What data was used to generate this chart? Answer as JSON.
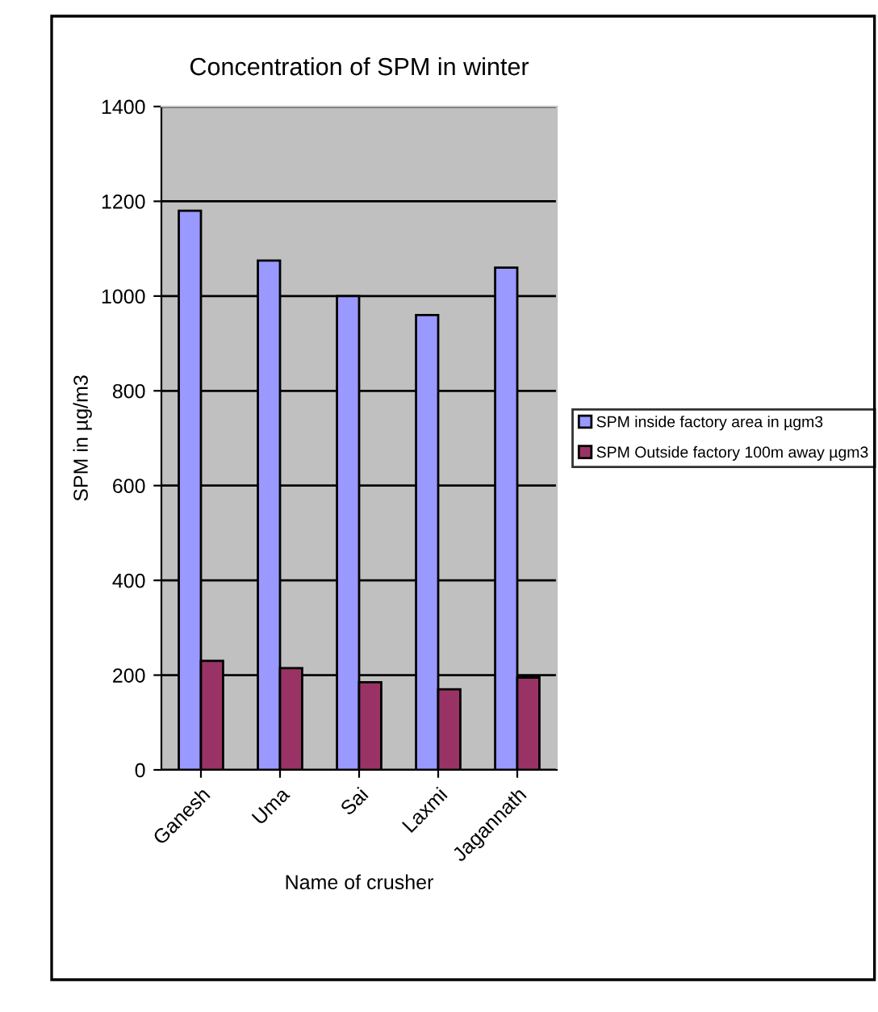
{
  "chart_data": {
    "type": "bar",
    "title": "Concentration of SPM in winter",
    "xlabel": "Name of crusher",
    "ylabel": "SPM in µg/m3",
    "categories": [
      "Ganesh",
      "Uma",
      "Sai",
      "Laxmi",
      "Jagannath"
    ],
    "series": [
      {
        "name": "SPM inside factory area in µgm3",
        "color": "#9999ff",
        "values": [
          1180,
          1075,
          1000,
          960,
          1060
        ]
      },
      {
        "name": "SPM Outside factory 100m away µgm3",
        "color": "#993366",
        "values": [
          230,
          215,
          185,
          170,
          195
        ]
      }
    ],
    "ylim": [
      0,
      1400
    ],
    "yticks": [
      0,
      200,
      400,
      600,
      800,
      1000,
      1200,
      1400
    ],
    "grid": "y",
    "legend": "right"
  }
}
